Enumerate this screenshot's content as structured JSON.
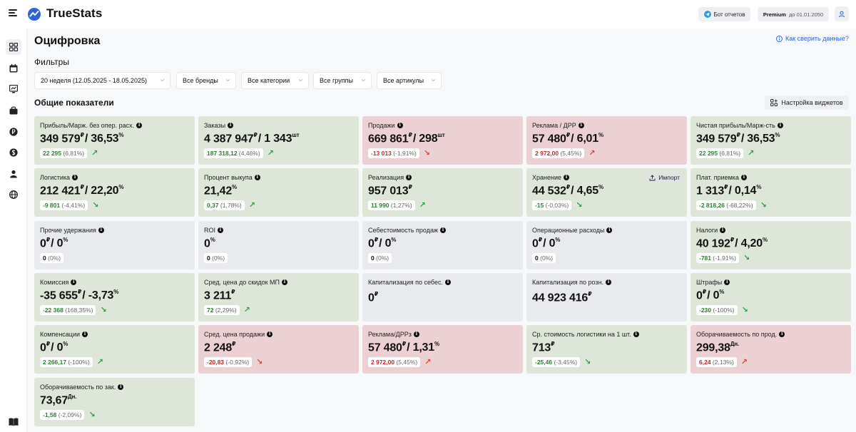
{
  "app": {
    "name": "TrueStats",
    "bot_label": "Бот отчетов",
    "premium_label": "Premium",
    "premium_until": "до 01.01.2050"
  },
  "page": {
    "title": "Оцифровка",
    "help_link": "Как сверить данные?",
    "filters_title": "Фильтры",
    "section_title": "Общие показатели",
    "widget_settings": "Настройка виджетов"
  },
  "filters": {
    "week": "20 неделя (12.05.2025 - 18.05.2025)",
    "brands": "Все бренды",
    "categories": "Все категории",
    "groups": "Все группы",
    "articles": "Все артикулы"
  },
  "nav_icons": [
    "grid-icon",
    "calendar-icon",
    "chart-icon",
    "bag-icon",
    "ruble-coin-icon",
    "dollar-coin-icon",
    "user-icon",
    "globe-icon",
    "book-icon"
  ],
  "cards": [
    {
      "title": "Прибыль/Марж. без опер. расх.",
      "value": "349 579",
      "unit": "₽",
      "value2": "/ 36,53",
      "unit2": "%",
      "delta": "22 295",
      "delta_pct": "(6,81%)",
      "trend": "up",
      "color": "green"
    },
    {
      "title": "Заказы",
      "value": "4 387 947",
      "unit": "₽",
      "value2": "/ 1 343",
      "unit2": "шт",
      "delta": "187 318,12",
      "delta_pct": "(4,46%)",
      "trend": "up",
      "color": "green"
    },
    {
      "title": "Продажи",
      "value": "669 861",
      "unit": "₽",
      "value2": "/ 298",
      "unit2": "шт",
      "delta": "-13 013",
      "delta_pct": "(-1,91%)",
      "trend": "down",
      "color": "red"
    },
    {
      "title": "Реклама / ДРР",
      "value": "57 480",
      "unit": "₽",
      "value2": "/ 6,01",
      "unit2": "%",
      "delta": "2 972,00",
      "delta_pct": "(5,45%)",
      "trend": "up-bad",
      "color": "red"
    },
    {
      "title": "Чистая прибыль/Марж-сть",
      "value": "349 579",
      "unit": "₽",
      "value2": "/ 36,53",
      "unit2": "%",
      "delta": "22 295",
      "delta_pct": "(6,81%)",
      "trend": "up",
      "color": "green"
    },
    {
      "title": "Логистика",
      "value": "212 421",
      "unit": "₽",
      "value2": "/ 22,20",
      "unit2": "%",
      "delta": "-9 801",
      "delta_pct": "(-4,41%)",
      "trend": "down-good",
      "color": "green"
    },
    {
      "title": "Процент выкупа",
      "value": "21,42",
      "unit": "%",
      "value2": "",
      "unit2": "",
      "delta": "0,37",
      "delta_pct": "(1,78%)",
      "trend": "up",
      "color": "green"
    },
    {
      "title": "Реализация",
      "value": "957 013",
      "unit": "₽",
      "value2": "",
      "unit2": "",
      "delta": "11 990",
      "delta_pct": "(1,27%)",
      "trend": "up",
      "color": "green"
    },
    {
      "title": "Хранение",
      "value": "44 532",
      "unit": "₽",
      "value2": "/ 4,65",
      "unit2": "%",
      "delta": "-15",
      "delta_pct": "(-0,03%)",
      "trend": "down-good",
      "color": "green",
      "import_label": "Импорт"
    },
    {
      "title": "Плат. приемка",
      "value": "1 313",
      "unit": "₽",
      "value2": "/ 0,14",
      "unit2": "%",
      "delta": "-2 818,26",
      "delta_pct": "(-68,22%)",
      "trend": "down-good",
      "color": "green"
    },
    {
      "title": "Прочие удержания",
      "value": "0",
      "unit": "₽",
      "value2": "/ 0",
      "unit2": "%",
      "delta": "0",
      "delta_pct": "(0%)",
      "trend": "none",
      "color": "neutral"
    },
    {
      "title": "ROI",
      "value": "0",
      "unit": "%",
      "value2": "",
      "unit2": "",
      "delta": "0",
      "delta_pct": "(0%)",
      "trend": "none",
      "color": "neutral"
    },
    {
      "title": "Себестоимость продаж",
      "value": "0",
      "unit": "₽",
      "value2": "/ 0",
      "unit2": "%",
      "delta": "0",
      "delta_pct": "(0%)",
      "trend": "none",
      "color": "neutral"
    },
    {
      "title": "Операционные расходы",
      "value": "0",
      "unit": "₽",
      "value2": "/ 0",
      "unit2": "%",
      "delta": "0",
      "delta_pct": "(0%)",
      "trend": "none",
      "color": "neutral"
    },
    {
      "title": "Налоги",
      "value": "40 192",
      "unit": "₽",
      "value2": "/ 4,20",
      "unit2": "%",
      "delta": "-781",
      "delta_pct": "(-1,91%)",
      "trend": "down-good",
      "color": "green"
    },
    {
      "title": "Комиссия",
      "value": "-35 655",
      "unit": "₽",
      "value2": "/ -3,73",
      "unit2": "%",
      "delta": "-22 368",
      "delta_pct": "(168,35%)",
      "trend": "down-good",
      "color": "green"
    },
    {
      "title": "Сред. цена до скидок МП",
      "value": "3 211",
      "unit": "₽",
      "value2": "",
      "unit2": "",
      "delta": "72",
      "delta_pct": "(2,29%)",
      "trend": "up",
      "color": "green"
    },
    {
      "title": "Капитализация по себес.",
      "value": "0",
      "unit": "₽",
      "value2": "",
      "unit2": "",
      "delta": "",
      "delta_pct": "",
      "trend": "none",
      "color": "neutral"
    },
    {
      "title": "Капитализация по розн.",
      "value": "44 923 416",
      "unit": "₽",
      "value2": "",
      "unit2": "",
      "delta": "",
      "delta_pct": "",
      "trend": "none",
      "color": "neutral"
    },
    {
      "title": "Штрафы",
      "value": "0",
      "unit": "₽",
      "value2": "/ 0",
      "unit2": "%",
      "delta": "-230",
      "delta_pct": "(-100%)",
      "trend": "down-good",
      "color": "green"
    },
    {
      "title": "Компенсации",
      "value": "0",
      "unit": "₽",
      "value2": "/ 0",
      "unit2": "%",
      "delta": "2 266,17",
      "delta_pct": "(-100%)",
      "trend": "up",
      "color": "green"
    },
    {
      "title": "Сред. цена продажи",
      "value": "2 248",
      "unit": "₽",
      "value2": "",
      "unit2": "",
      "delta": "-20,83",
      "delta_pct": "(-0,92%)",
      "trend": "down",
      "color": "red"
    },
    {
      "title": "Реклама/ДРРз",
      "value": "57 480",
      "unit": "₽",
      "value2": "/ 1,31",
      "unit2": "%",
      "delta": "2 972,00",
      "delta_pct": "(5,45%)",
      "trend": "up-bad",
      "color": "red"
    },
    {
      "title": "Ср. стоимость логистики на 1 шт.",
      "value": "713",
      "unit": "₽",
      "value2": "",
      "unit2": "",
      "delta": "-25,46",
      "delta_pct": "(-3,45%)",
      "trend": "down-good",
      "color": "green"
    },
    {
      "title": "Оборачиваемость по прод.",
      "value": "299,38",
      "unit": "Дн.",
      "value2": "",
      "unit2": "",
      "delta": "6,24",
      "delta_pct": "(2,13%)",
      "trend": "up-bad",
      "color": "red"
    },
    {
      "title": "Оборачиваемость по зак.",
      "value": "73,67",
      "unit": "Дн.",
      "value2": "",
      "unit2": "",
      "delta": "-1,58",
      "delta_pct": "(-2,09%)",
      "trend": "down-good",
      "color": "green"
    }
  ]
}
